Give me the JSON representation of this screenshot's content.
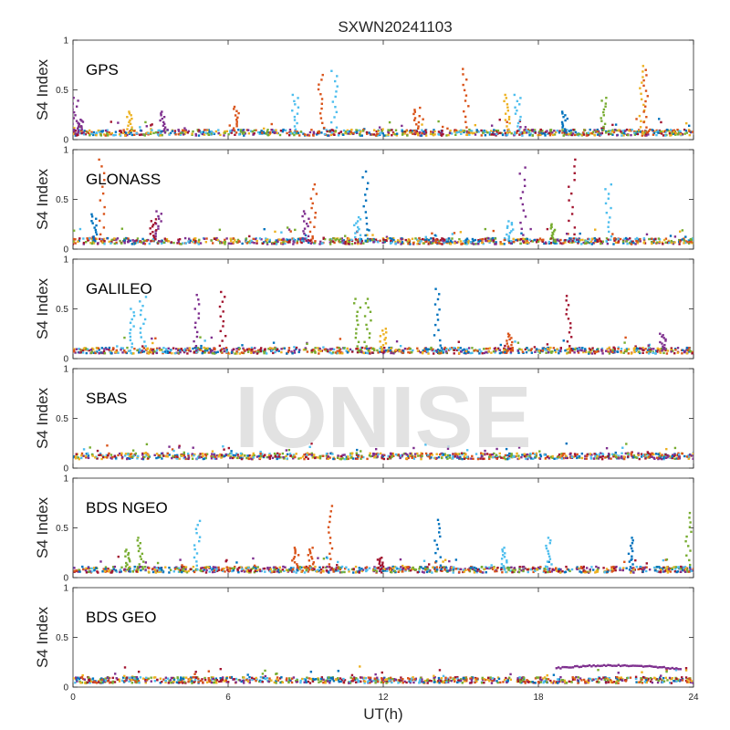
{
  "title": "SXWN20241103",
  "watermark": "IONISE",
  "xlabel": "UT(h)",
  "colors": [
    "#0072BD",
    "#D95319",
    "#EDB120",
    "#7E2F8E",
    "#77AC30",
    "#4DBEEE",
    "#A2142F"
  ],
  "chart_data": [
    {
      "type": "scatter",
      "label": "GPS",
      "ylabel": "S4 Index",
      "xlim": [
        0,
        24
      ],
      "ylim": [
        0,
        1
      ],
      "yticks": [
        0,
        0.5,
        1
      ],
      "ytick_labels": [
        "0",
        "0.5",
        "1"
      ],
      "baseline": 0.07,
      "spikes": [
        {
          "x": 0.1,
          "y": 0.42,
          "color": 3
        },
        {
          "x": 0.3,
          "y": 0.2,
          "color": 3
        },
        {
          "x": 2.2,
          "y": 0.28,
          "color": 2
        },
        {
          "x": 3.5,
          "y": 0.28,
          "color": 3
        },
        {
          "x": 6.3,
          "y": 0.33,
          "color": 1
        },
        {
          "x": 8.6,
          "y": 0.45,
          "color": 5
        },
        {
          "x": 9.6,
          "y": 0.65,
          "color": 1
        },
        {
          "x": 10.1,
          "y": 0.69,
          "color": 5
        },
        {
          "x": 13.3,
          "y": 0.32,
          "color": 1
        },
        {
          "x": 15.2,
          "y": 0.71,
          "color": 1
        },
        {
          "x": 16.8,
          "y": 0.45,
          "color": 2
        },
        {
          "x": 17.2,
          "y": 0.45,
          "color": 5
        },
        {
          "x": 19.0,
          "y": 0.28,
          "color": 0
        },
        {
          "x": 20.5,
          "y": 0.42,
          "color": 4
        },
        {
          "x": 22.0,
          "y": 0.74,
          "color": 2
        },
        {
          "x": 22.2,
          "y": 0.7,
          "color": 1
        }
      ]
    },
    {
      "type": "scatter",
      "label": "GLONASS",
      "ylabel": "S4 Index",
      "xlim": [
        0,
        24
      ],
      "ylim": [
        0,
        1
      ],
      "yticks": [
        0,
        0.5,
        1
      ],
      "ytick_labels": [
        "0",
        "0.5",
        "1"
      ],
      "baseline": 0.08,
      "spikes": [
        {
          "x": 1.1,
          "y": 0.9,
          "color": 1
        },
        {
          "x": 0.8,
          "y": 0.35,
          "color": 0
        },
        {
          "x": 3.3,
          "y": 0.38,
          "color": 3
        },
        {
          "x": 3.1,
          "y": 0.3,
          "color": 6
        },
        {
          "x": 9.3,
          "y": 0.65,
          "color": 1
        },
        {
          "x": 9.0,
          "y": 0.38,
          "color": 3
        },
        {
          "x": 11.3,
          "y": 0.78,
          "color": 0
        },
        {
          "x": 11.0,
          "y": 0.32,
          "color": 5
        },
        {
          "x": 17.4,
          "y": 0.82,
          "color": 3
        },
        {
          "x": 16.9,
          "y": 0.28,
          "color": 5
        },
        {
          "x": 19.3,
          "y": 0.9,
          "color": 6
        },
        {
          "x": 18.6,
          "y": 0.25,
          "color": 4
        },
        {
          "x": 20.7,
          "y": 0.65,
          "color": 5
        }
      ]
    },
    {
      "type": "scatter",
      "label": "GALILEO",
      "ylabel": "S4 Index",
      "xlim": [
        0,
        24
      ],
      "ylim": [
        0,
        1
      ],
      "yticks": [
        0,
        0.5,
        1
      ],
      "ytick_labels": [
        "0",
        "0.5",
        "1"
      ],
      "baseline": 0.08,
      "spikes": [
        {
          "x": 2.3,
          "y": 0.5,
          "color": 5
        },
        {
          "x": 2.7,
          "y": 0.62,
          "color": 5
        },
        {
          "x": 4.8,
          "y": 0.64,
          "color": 3
        },
        {
          "x": 5.8,
          "y": 0.67,
          "color": 6
        },
        {
          "x": 11.0,
          "y": 0.6,
          "color": 4
        },
        {
          "x": 11.4,
          "y": 0.6,
          "color": 4
        },
        {
          "x": 12.0,
          "y": 0.3,
          "color": 2
        },
        {
          "x": 14.1,
          "y": 0.7,
          "color": 0
        },
        {
          "x": 16.9,
          "y": 0.25,
          "color": 1
        },
        {
          "x": 19.2,
          "y": 0.63,
          "color": 6
        },
        {
          "x": 22.8,
          "y": 0.25,
          "color": 3
        }
      ]
    },
    {
      "type": "scatter",
      "label": "SBAS",
      "ylabel": "S4 Index",
      "xlim": [
        0,
        24
      ],
      "ylim": [
        0,
        1
      ],
      "yticks": [
        0,
        0.5,
        1
      ],
      "ytick_labels": [
        "0",
        "0.5",
        "1"
      ],
      "baseline": 0.12,
      "spikes": []
    },
    {
      "type": "scatter",
      "label": "BDS NGEO",
      "ylabel": "S4 Index",
      "xlim": [
        0,
        24
      ],
      "ylim": [
        0,
        1
      ],
      "yticks": [
        0,
        0.5,
        1
      ],
      "ytick_labels": [
        "0",
        "0.5",
        "1"
      ],
      "baseline": 0.08,
      "spikes": [
        {
          "x": 2.1,
          "y": 0.28,
          "color": 4
        },
        {
          "x": 2.6,
          "y": 0.4,
          "color": 4
        },
        {
          "x": 4.8,
          "y": 0.57,
          "color": 5
        },
        {
          "x": 8.6,
          "y": 0.3,
          "color": 1
        },
        {
          "x": 9.2,
          "y": 0.3,
          "color": 1
        },
        {
          "x": 10.0,
          "y": 0.72,
          "color": 1
        },
        {
          "x": 11.9,
          "y": 0.2,
          "color": 6
        },
        {
          "x": 14.1,
          "y": 0.58,
          "color": 0
        },
        {
          "x": 16.7,
          "y": 0.3,
          "color": 5
        },
        {
          "x": 18.4,
          "y": 0.4,
          "color": 5
        },
        {
          "x": 21.6,
          "y": 0.4,
          "color": 0
        },
        {
          "x": 23.8,
          "y": 0.65,
          "color": 4
        }
      ]
    },
    {
      "type": "scatter",
      "label": "BDS GEO",
      "ylabel": "S4 Index",
      "xlim": [
        0,
        24
      ],
      "ylim": [
        0,
        1
      ],
      "yticks": [
        0,
        0.5,
        1
      ],
      "ytick_labels": [
        "0",
        "0.5",
        "1"
      ],
      "baseline": 0.07,
      "spikes": [],
      "arc": {
        "x0": 18.7,
        "x1": 23.5,
        "y0": 0.19,
        "ypeak": 0.23,
        "y1": 0.18,
        "color": 3
      },
      "xticks": [
        0,
        6,
        12,
        18,
        24
      ],
      "xtick_labels": [
        "0",
        "6",
        "12",
        "18",
        "24"
      ]
    }
  ]
}
